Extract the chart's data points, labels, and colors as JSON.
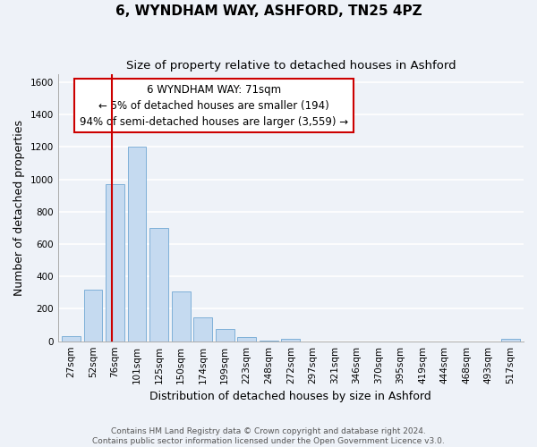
{
  "title": "6, WYNDHAM WAY, ASHFORD, TN25 4PZ",
  "subtitle": "Size of property relative to detached houses in Ashford",
  "xlabel": "Distribution of detached houses by size in Ashford",
  "ylabel": "Number of detached properties",
  "bar_labels": [
    "27sqm",
    "52sqm",
    "76sqm",
    "101sqm",
    "125sqm",
    "150sqm",
    "174sqm",
    "199sqm",
    "223sqm",
    "248sqm",
    "272sqm",
    "297sqm",
    "321sqm",
    "346sqm",
    "370sqm",
    "395sqm",
    "419sqm",
    "444sqm",
    "468sqm",
    "493sqm",
    "517sqm"
  ],
  "bar_values": [
    30,
    320,
    970,
    1200,
    700,
    310,
    150,
    75,
    25,
    5,
    15,
    0,
    0,
    0,
    0,
    0,
    0,
    0,
    0,
    0,
    15
  ],
  "bar_color": "#c5daf0",
  "bar_edge_color": "#7fb0d8",
  "vline_color": "#cc0000",
  "vline_x_bar_index": 1.85,
  "annotation_line1": "6 WYNDHAM WAY: 71sqm",
  "annotation_line2": "← 5% of detached houses are smaller (194)",
  "annotation_line3": "94% of semi-detached houses are larger (3,559) →",
  "ylim": [
    0,
    1650
  ],
  "yticks": [
    0,
    200,
    400,
    600,
    800,
    1000,
    1200,
    1400,
    1600
  ],
  "background_color": "#eef2f8",
  "grid_color": "#ffffff",
  "footer": "Contains HM Land Registry data © Crown copyright and database right 2024.\nContains public sector information licensed under the Open Government Licence v3.0.",
  "title_fontsize": 11,
  "subtitle_fontsize": 9.5,
  "annotation_fontsize": 8.5,
  "axis_label_fontsize": 9,
  "tick_fontsize": 7.5
}
